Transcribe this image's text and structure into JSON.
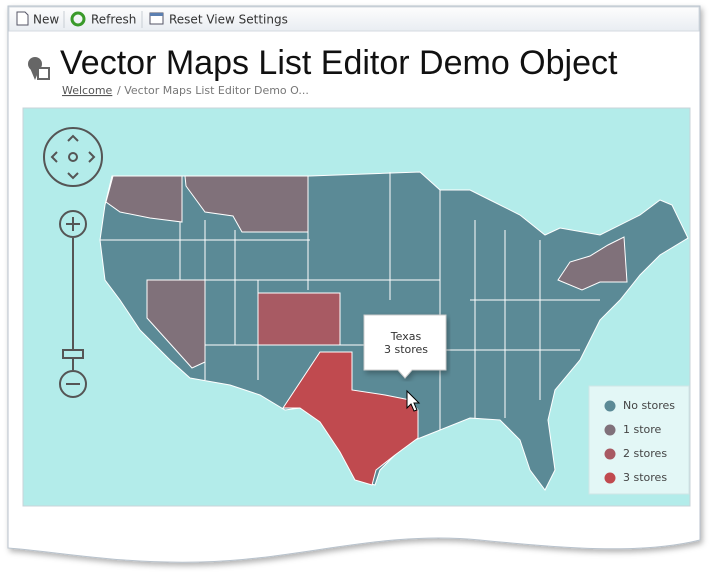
{
  "toolbar": {
    "items": [
      "New",
      "Refresh",
      "Reset View Settings"
    ]
  },
  "header": {
    "title": "Vector Maps List Editor Demo Object",
    "breadcrumb": {
      "link": "Welcome",
      "current": "/ Vector Maps List Editor Demo O..."
    }
  },
  "map": {
    "tooltip": {
      "title": "Texas",
      "text": "3 stores"
    },
    "legend": [
      {
        "label": "No stores",
        "color": "#5b8a96"
      },
      {
        "label": "1 store",
        "color": "#80717a"
      },
      {
        "label": "2 stores",
        "color": "#a85a63"
      },
      {
        "label": "3 stores",
        "color": "#c04a4f"
      }
    ]
  }
}
